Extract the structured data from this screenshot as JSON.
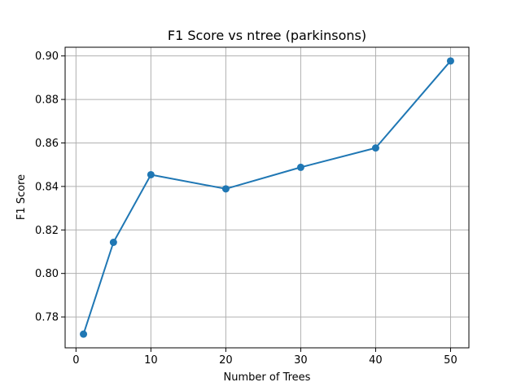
{
  "chart_data": {
    "type": "line",
    "title": "F1 Score vs ntree (parkinsons)",
    "xlabel": "Number of Trees",
    "ylabel": "F1 Score",
    "x_mode": "categorical",
    "categories": [
      "1",
      "5",
      "10",
      "20",
      "30",
      "40",
      "50"
    ],
    "series": [
      {
        "values": [
          0.7721,
          0.8143,
          0.8454,
          0.8389,
          0.8488,
          0.8577,
          0.8977
        ],
        "color": "#1f77b4"
      }
    ],
    "x_ticks": [
      "0",
      "10",
      "20",
      "30",
      "40",
      "50"
    ],
    "y_ticks": [
      "0.78",
      "0.80",
      "0.82",
      "0.84",
      "0.86",
      "0.88",
      "0.90"
    ],
    "ylim": [
      0.7658,
      0.904
    ],
    "grid": true,
    "marker": "circle"
  }
}
